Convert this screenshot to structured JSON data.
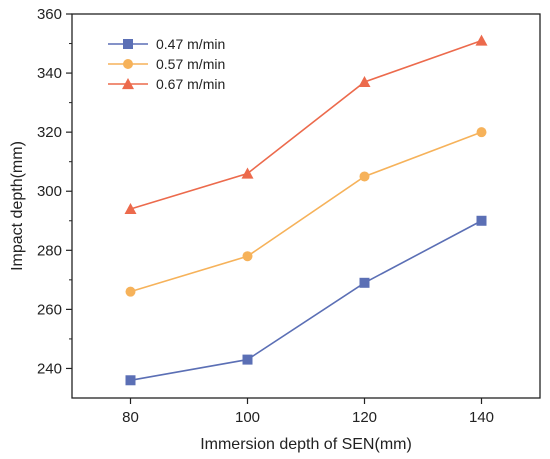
{
  "chart_data": {
    "type": "line",
    "title": "",
    "xlabel": "Immersion depth of SEN(mm)",
    "ylabel": "Impact depth(mm)",
    "x": [
      80,
      100,
      120,
      140
    ],
    "xlim": [
      70,
      150
    ],
    "ylim": [
      230,
      360
    ],
    "xticks": [
      80,
      100,
      120,
      140
    ],
    "yticks": [
      240,
      260,
      280,
      300,
      320,
      340,
      360
    ],
    "grid": false,
    "legend_position": "top-left",
    "series": [
      {
        "name": "0.47 m/min",
        "values": [
          236,
          243,
          269,
          290
        ],
        "marker": "square",
        "color": "#5b6fb5"
      },
      {
        "name": "0.57 m/min",
        "values": [
          266,
          278,
          305,
          320
        ],
        "marker": "circle",
        "color": "#f6b25a"
      },
      {
        "name": "0.67 m/min",
        "values": [
          294,
          306,
          337,
          351
        ],
        "marker": "triangle",
        "color": "#ec6a4c"
      }
    ]
  }
}
